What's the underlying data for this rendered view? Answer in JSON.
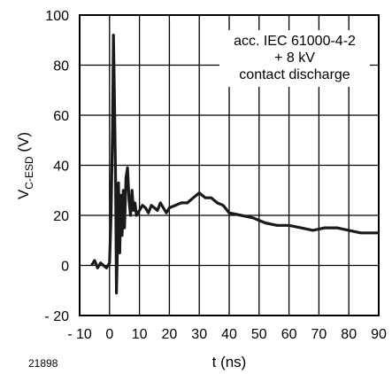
{
  "chart_data": {
    "type": "line",
    "xlabel": "t (ns)",
    "ylabel_main": "V",
    "ylabel_sub": "C-ESD",
    "ylabel_unit": " (V)",
    "xlim": [
      -10,
      90
    ],
    "ylim": [
      -20,
      100
    ],
    "x_ticks": [
      -10,
      0,
      10,
      20,
      30,
      40,
      50,
      60,
      70,
      80,
      90
    ],
    "y_ticks": [
      -20,
      0,
      20,
      40,
      60,
      80,
      100
    ],
    "x_tick_labels": [
      "- 10",
      "0",
      "10",
      "20",
      "30",
      "40",
      "50",
      "60",
      "70",
      "80",
      "90"
    ],
    "y_tick_labels": [
      "- 20",
      "0",
      "20",
      "40",
      "60",
      "80",
      "100"
    ],
    "grid": true,
    "annotation": [
      "acc. IEC 61000-4-2",
      "+ 8 kV",
      "contact discharge"
    ],
    "figure_id": "21898",
    "line_color": "#1a1a1a",
    "series": [
      {
        "x": [
          -6,
          -5,
          -4,
          -3,
          -2,
          -1,
          0,
          0.5,
          1,
          1.3,
          1.6,
          2,
          2.3,
          2.7,
          3,
          3.4,
          3.8,
          4.2,
          4.6,
          5,
          5.5,
          6,
          6.5,
          7,
          7.5,
          8,
          8.5,
          9,
          10,
          11,
          12,
          13,
          14,
          15,
          16,
          17,
          18,
          19,
          20,
          22,
          24,
          26,
          28,
          30,
          32,
          34,
          36,
          38,
          40,
          44,
          48,
          52,
          56,
          60,
          64,
          68,
          72,
          76,
          80,
          84,
          88,
          90
        ],
        "y": [
          0,
          2,
          -1,
          1,
          0,
          -1,
          1,
          20,
          55,
          92,
          70,
          35,
          -11,
          10,
          33,
          5,
          28,
          12,
          30,
          15,
          35,
          39,
          26,
          20,
          30,
          22,
          25,
          20,
          22,
          24,
          23,
          21,
          24,
          23,
          22,
          25,
          23,
          21,
          23,
          24,
          25,
          25,
          27,
          29,
          27,
          27,
          25,
          24,
          21,
          20,
          19,
          17,
          16,
          16,
          15,
          14,
          15,
          15,
          14,
          13,
          13,
          13
        ]
      }
    ]
  }
}
